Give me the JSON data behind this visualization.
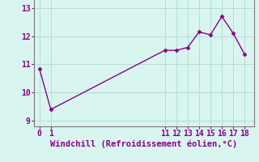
{
  "x": [
    0,
    1,
    11,
    12,
    13,
    14,
    15,
    16,
    17,
    18
  ],
  "y": [
    10.85,
    9.4,
    11.5,
    11.5,
    11.6,
    12.15,
    12.05,
    12.7,
    12.1,
    11.35
  ],
  "line_color": "#8B008B",
  "marker": "D",
  "markersize": 2.5,
  "linewidth": 1.0,
  "background_color": "#d8f5f0",
  "grid_color": "#b8ddd8",
  "xlabel": "Windchill (Refroidissement éolien,°C)",
  "xlabel_color": "#8B008B",
  "xlabel_fontsize": 7.5,
  "tick_color": "#8B008B",
  "tick_fontsize": 7,
  "spine_color": "#7a7a7a",
  "ylim": [
    8.8,
    13.4
  ],
  "xlim": [
    -0.5,
    18.8
  ],
  "yticks": [
    9,
    10,
    11,
    12,
    13
  ],
  "xticks": [
    0,
    1,
    11,
    12,
    13,
    14,
    15,
    16,
    17,
    18
  ]
}
